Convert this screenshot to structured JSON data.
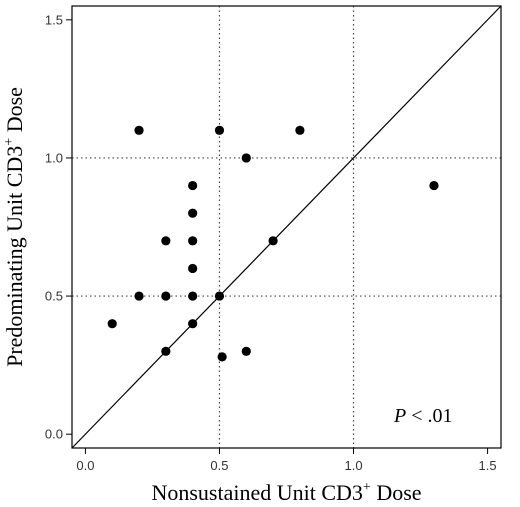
{
  "chart_data": {
    "type": "scatter",
    "xlabel": "Nonsustained Unit CD3",
    "xlabel_sup": "+",
    "xlabel_tail": " Dose",
    "ylabel": "Predominating Unit CD3",
    "ylabel_sup": "+",
    "ylabel_tail": " Dose",
    "xlim": [
      -0.05,
      1.55
    ],
    "ylim": [
      -0.05,
      1.55
    ],
    "xticks": [
      0.0,
      0.5,
      1.0,
      1.5
    ],
    "yticks": [
      0.0,
      0.5,
      1.0,
      1.5
    ],
    "xtick_labels": [
      "0.0",
      "0.5",
      "1.0",
      "1.5"
    ],
    "ytick_labels": [
      "0.0",
      "0.5",
      "1.0",
      "1.5"
    ],
    "reference_lines": {
      "vertical": [
        0.5,
        1.0
      ],
      "horizontal": [
        0.5,
        1.0
      ],
      "style": "dotted",
      "diagonal": "identity"
    },
    "annotation": {
      "italic": "P",
      "text": " < .01"
    },
    "points": [
      {
        "x": 0.2,
        "y": 1.1
      },
      {
        "x": 0.5,
        "y": 1.1
      },
      {
        "x": 0.8,
        "y": 1.1
      },
      {
        "x": 0.6,
        "y": 1.0
      },
      {
        "x": 1.3,
        "y": 0.9
      },
      {
        "x": 0.4,
        "y": 0.9
      },
      {
        "x": 0.4,
        "y": 0.8
      },
      {
        "x": 0.3,
        "y": 0.7
      },
      {
        "x": 0.4,
        "y": 0.7
      },
      {
        "x": 0.7,
        "y": 0.7
      },
      {
        "x": 0.4,
        "y": 0.6
      },
      {
        "x": 0.2,
        "y": 0.5
      },
      {
        "x": 0.3,
        "y": 0.5
      },
      {
        "x": 0.4,
        "y": 0.5
      },
      {
        "x": 0.5,
        "y": 0.5
      },
      {
        "x": 0.1,
        "y": 0.4
      },
      {
        "x": 0.4,
        "y": 0.4
      },
      {
        "x": 0.3,
        "y": 0.3
      },
      {
        "x": 0.6,
        "y": 0.3
      },
      {
        "x": 0.51,
        "y": 0.28
      }
    ],
    "marker_color": "#000000",
    "grid": false
  }
}
